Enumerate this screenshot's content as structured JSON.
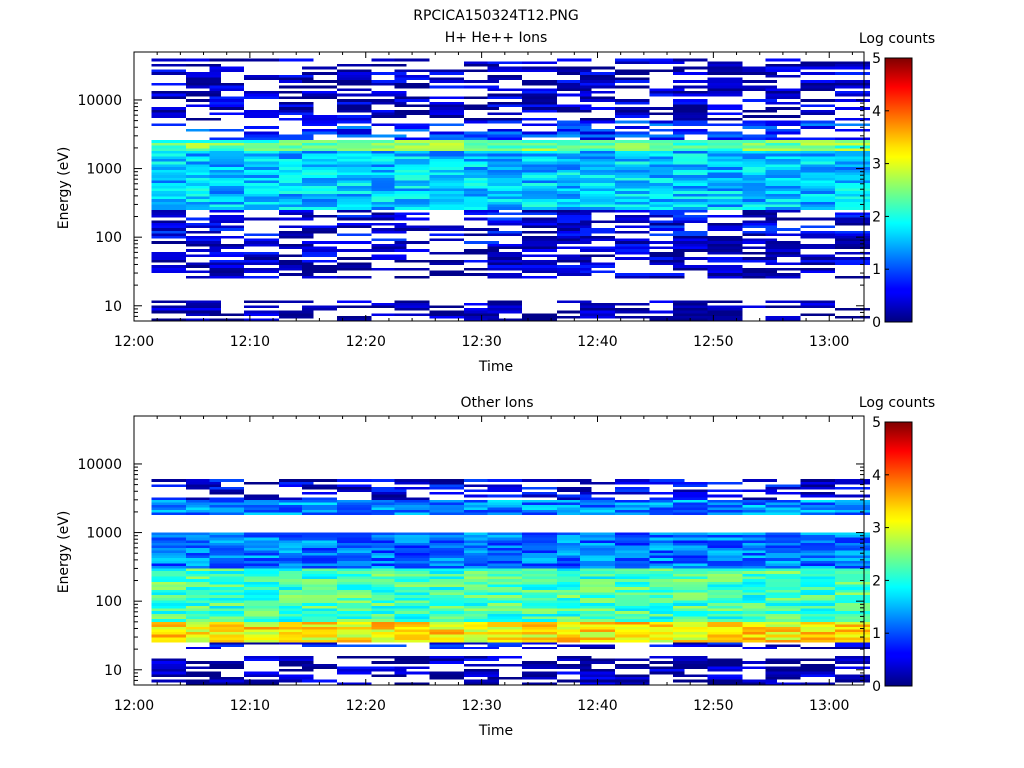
{
  "figure_title": "RPCICA150324T12.PNG",
  "chart_data": [
    {
      "type": "heatmap",
      "title": "H+ He++ Ions",
      "xlabel": "Time",
      "ylabel": "Energy (eV)",
      "y_scale": "log",
      "x_range": [
        "12:00",
        "13:03"
      ],
      "y_range": [
        6,
        50000
      ],
      "x_ticks": [
        "12:00",
        "12:10",
        "12:20",
        "12:30",
        "12:40",
        "12:50",
        "13:00"
      ],
      "y_ticks": [
        "10",
        "100",
        "1000",
        "10000"
      ],
      "grid": false,
      "colorbar": {
        "label": "Log counts",
        "range": [
          0,
          5
        ],
        "ticks": [
          "0",
          "1",
          "2",
          "3",
          "4",
          "5"
        ],
        "colormap": "jet"
      },
      "time_bins": [
        "12:03",
        "12:06",
        "12:08",
        "12:11",
        "12:14",
        "12:16",
        "12:19",
        "12:22",
        "12:24",
        "12:27",
        "12:30",
        "12:32",
        "12:35",
        "12:38",
        "12:40",
        "12:43",
        "12:46",
        "12:48",
        "12:51",
        "12:54",
        "12:56",
        "12:59",
        "13:02"
      ],
      "energy_bands": [
        {
          "range": [
            5000,
            40000
          ],
          "level": 0.3
        },
        {
          "range": [
            2600,
            5000
          ],
          "level": 0.9
        },
        {
          "range": [
            1800,
            2600
          ],
          "level": 2.4
        },
        {
          "range": [
            250,
            1800
          ],
          "level": 1.6
        },
        {
          "range": [
            80,
            250
          ],
          "level": 0.5
        },
        {
          "range": [
            25,
            80
          ],
          "level": 0.3
        },
        {
          "range": [
            6,
            12
          ],
          "level": 0.15
        }
      ]
    },
    {
      "type": "heatmap",
      "title": "Other Ions",
      "xlabel": "Time",
      "ylabel": "Energy (eV)",
      "y_scale": "log",
      "x_range": [
        "12:00",
        "13:03"
      ],
      "y_range": [
        6,
        50000
      ],
      "x_ticks": [
        "12:00",
        "12:10",
        "12:20",
        "12:30",
        "12:40",
        "12:50",
        "13:00"
      ],
      "y_ticks": [
        "10",
        "100",
        "1000",
        "10000"
      ],
      "grid": false,
      "colorbar": {
        "label": "Log counts",
        "range": [
          0,
          5
        ],
        "ticks": [
          "0",
          "1",
          "2",
          "3",
          "4",
          "5"
        ],
        "colormap": "jet"
      },
      "time_bins": [
        "12:03",
        "12:06",
        "12:08",
        "12:11",
        "12:14",
        "12:16",
        "12:19",
        "12:22",
        "12:24",
        "12:27",
        "12:30",
        "12:32",
        "12:35",
        "12:38",
        "12:40",
        "12:43",
        "12:46",
        "12:48",
        "12:51",
        "12:54",
        "12:56",
        "12:59",
        "13:02"
      ],
      "energy_bands": [
        {
          "range": [
            3000,
            6000
          ],
          "level": 0.5
        },
        {
          "range": [
            1800,
            3000
          ],
          "level": 1.3
        },
        {
          "range": [
            300,
            1000
          ],
          "level": 1.2
        },
        {
          "range": [
            50,
            300
          ],
          "level": 2.2
        },
        {
          "range": [
            25,
            50
          ],
          "level": 3.2
        },
        {
          "range": [
            20,
            25
          ],
          "level": 0.6
        },
        {
          "range": [
            6,
            16
          ],
          "level": 0.2
        }
      ]
    }
  ]
}
